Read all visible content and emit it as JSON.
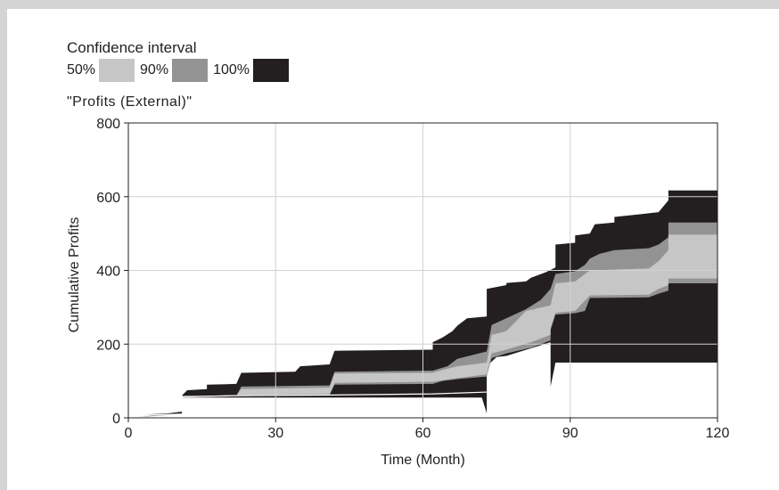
{
  "legend": {
    "title": "Confidence interval",
    "items": [
      {
        "label": "50%",
        "color": "#c6c6c6"
      },
      {
        "label": "90%",
        "color": "#939393"
      },
      {
        "label": "100%",
        "color": "#231f20"
      }
    ]
  },
  "variable_label": "\"Profits (External)\"",
  "chart_data": {
    "type": "area",
    "xlabel": "Time (Month)",
    "ylabel": "Cumulative Profits",
    "xlim": [
      0,
      120
    ],
    "ylim": [
      0,
      800
    ],
    "xticks": [
      0,
      30,
      60,
      90,
      120
    ],
    "yticks": [
      0,
      200,
      400,
      600,
      800
    ],
    "grid": true,
    "bands": [
      {
        "name": "100%",
        "color": "#231f20",
        "upper": [
          [
            0,
            0
          ],
          [
            5,
            10
          ],
          [
            8,
            12
          ],
          [
            11,
            17
          ],
          [
            11,
            62
          ],
          [
            12,
            75
          ],
          [
            16,
            78
          ],
          [
            16,
            90
          ],
          [
            22,
            92
          ],
          [
            23,
            122
          ],
          [
            34,
            125
          ],
          [
            35,
            140
          ],
          [
            41,
            145
          ],
          [
            42,
            182
          ],
          [
            62,
            185
          ],
          [
            62,
            205
          ],
          [
            64,
            218
          ],
          [
            66,
            235
          ],
          [
            67,
            250
          ],
          [
            69,
            270
          ],
          [
            73,
            275
          ],
          [
            73,
            350
          ],
          [
            77,
            360
          ],
          [
            77,
            366
          ],
          [
            81,
            370
          ],
          [
            82,
            380
          ],
          [
            85,
            395
          ],
          [
            87,
            408
          ],
          [
            87,
            470
          ],
          [
            91,
            475
          ],
          [
            91,
            495
          ],
          [
            94,
            500
          ],
          [
            95,
            525
          ],
          [
            99,
            530
          ],
          [
            99,
            545
          ],
          [
            104,
            552
          ],
          [
            108,
            558
          ],
          [
            110,
            590
          ],
          [
            110,
            617
          ],
          [
            120,
            617
          ]
        ],
        "lower": [
          [
            0,
            0
          ],
          [
            5,
            8
          ],
          [
            8,
            9
          ],
          [
            11,
            10
          ],
          [
            11,
            55
          ],
          [
            72,
            55
          ],
          [
            73,
            12
          ],
          [
            73,
            140
          ],
          [
            75,
            165
          ],
          [
            77,
            168
          ],
          [
            86,
            205
          ],
          [
            86,
            85
          ],
          [
            87,
            150
          ],
          [
            120,
            150
          ]
        ]
      },
      {
        "name": "90%",
        "color": "#939393",
        "upper": [
          [
            0,
            0
          ],
          [
            5,
            8
          ],
          [
            11,
            12
          ],
          [
            11,
            60
          ],
          [
            22,
            60
          ],
          [
            23,
            85
          ],
          [
            41,
            88
          ],
          [
            42,
            125
          ],
          [
            62,
            128
          ],
          [
            65,
            140
          ],
          [
            67,
            160
          ],
          [
            70,
            170
          ],
          [
            73,
            180
          ],
          [
            74,
            252
          ],
          [
            77,
            270
          ],
          [
            81,
            295
          ],
          [
            84,
            320
          ],
          [
            86,
            350
          ],
          [
            87,
            390
          ],
          [
            91,
            398
          ],
          [
            93,
            415
          ],
          [
            94,
            432
          ],
          [
            96,
            445
          ],
          [
            99,
            455
          ],
          [
            106,
            460
          ],
          [
            108,
            470
          ],
          [
            110,
            490
          ],
          [
            110,
            530
          ],
          [
            120,
            530
          ]
        ],
        "lower": [
          [
            0,
            0
          ],
          [
            11,
            10
          ],
          [
            11,
            55
          ],
          [
            22,
            60
          ],
          [
            41,
            62
          ],
          [
            42,
            90
          ],
          [
            62,
            92
          ],
          [
            64,
            100
          ],
          [
            67,
            105
          ],
          [
            73,
            112
          ],
          [
            74,
            162
          ],
          [
            77,
            175
          ],
          [
            82,
            190
          ],
          [
            86,
            210
          ],
          [
            86,
            238
          ],
          [
            87,
            280
          ],
          [
            91,
            284
          ],
          [
            93,
            290
          ],
          [
            94,
            325
          ],
          [
            106,
            327
          ],
          [
            108,
            337
          ],
          [
            110,
            345
          ],
          [
            110,
            365
          ],
          [
            120,
            365
          ]
        ]
      },
      {
        "name": "50%",
        "color": "#c6c6c6",
        "upper": [
          [
            0,
            0
          ],
          [
            11,
            10
          ],
          [
            11,
            58
          ],
          [
            22,
            60
          ],
          [
            23,
            78
          ],
          [
            41,
            82
          ],
          [
            42,
            120
          ],
          [
            62,
            122
          ],
          [
            64,
            130
          ],
          [
            67,
            140
          ],
          [
            73,
            150
          ],
          [
            74,
            225
          ],
          [
            77,
            235
          ],
          [
            81,
            290
          ],
          [
            86,
            305
          ],
          [
            87,
            365
          ],
          [
            91,
            370
          ],
          [
            94,
            400
          ],
          [
            106,
            405
          ],
          [
            108,
            425
          ],
          [
            110,
            455
          ],
          [
            110,
            497
          ],
          [
            120,
            497
          ]
        ],
        "lower": [
          [
            0,
            0
          ],
          [
            11,
            10
          ],
          [
            11,
            58
          ],
          [
            22,
            62
          ],
          [
            41,
            65
          ],
          [
            42,
            95
          ],
          [
            62,
            98
          ],
          [
            67,
            108
          ],
          [
            73,
            118
          ],
          [
            74,
            175
          ],
          [
            77,
            185
          ],
          [
            82,
            205
          ],
          [
            86,
            225
          ],
          [
            86,
            245
          ],
          [
            87,
            285
          ],
          [
            91,
            290
          ],
          [
            94,
            332
          ],
          [
            106,
            334
          ],
          [
            108,
            350
          ],
          [
            110,
            360
          ],
          [
            110,
            378
          ],
          [
            120,
            378
          ]
        ]
      }
    ],
    "median": [
      [
        0,
        0
      ],
      [
        5,
        8
      ],
      [
        11,
        10
      ],
      [
        11,
        57
      ],
      [
        22,
        60
      ],
      [
        42,
        62
      ],
      [
        62,
        65
      ],
      [
        73,
        70
      ],
      [
        120,
        70
      ]
    ]
  }
}
